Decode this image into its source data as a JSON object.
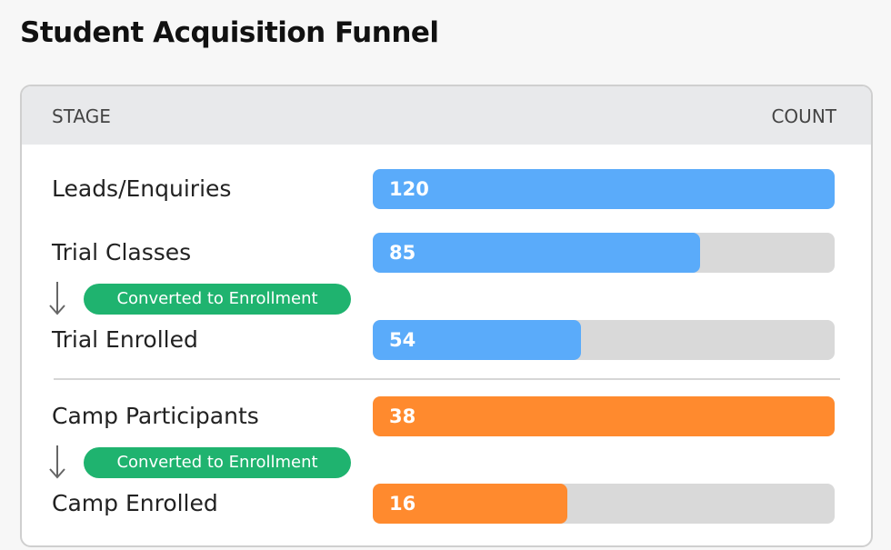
{
  "header": {
    "title": "Student Acquisition Funnel"
  },
  "table": {
    "columns": [
      "STAGE",
      "COUNT"
    ],
    "groups": [
      {
        "color": "#5aabfa",
        "rows": [
          {
            "label": "Leads/Enquiries",
            "value": 120
          },
          {
            "label": "Trial Classes",
            "value": 85,
            "conversion": "Converted to Enrollment"
          },
          {
            "label": "Trial Enrolled",
            "value": 54
          }
        ]
      },
      {
        "color": "#ff8a2e",
        "rows": [
          {
            "label": "Camp Participants",
            "value": 38,
            "conversion": "Converted to Enrollment"
          },
          {
            "label": "Camp Enrolled",
            "value": 16
          }
        ]
      }
    ]
  }
}
